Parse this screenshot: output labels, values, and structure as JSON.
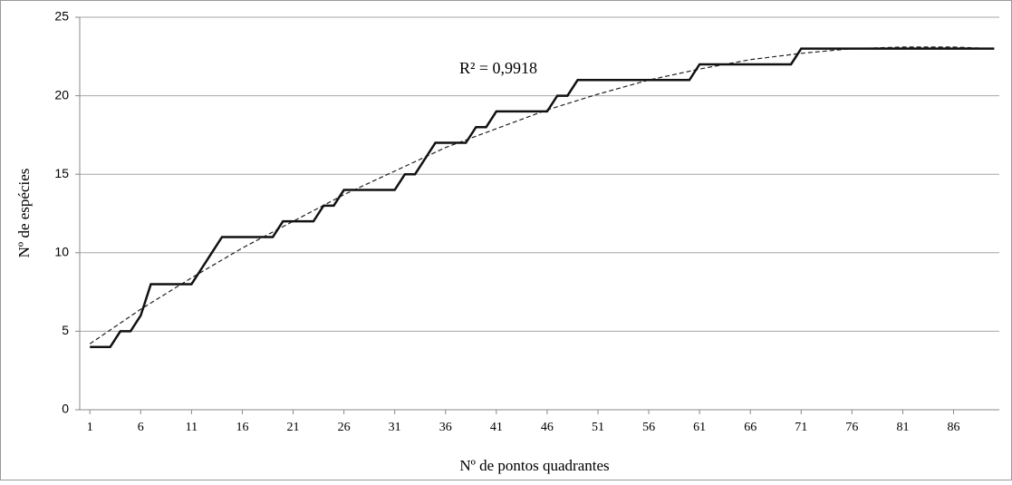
{
  "chart_data": {
    "type": "line",
    "x_label": "Nº de pontos quadrantes",
    "y_label": "Nº de espécies",
    "annotation": "R² = 0,9918",
    "x": [
      1,
      2,
      3,
      4,
      5,
      6,
      7,
      8,
      9,
      10,
      11,
      12,
      13,
      14,
      15,
      16,
      17,
      18,
      19,
      20,
      21,
      22,
      23,
      24,
      25,
      26,
      27,
      28,
      29,
      30,
      31,
      32,
      33,
      34,
      35,
      36,
      37,
      38,
      39,
      40,
      41,
      42,
      43,
      44,
      45,
      46,
      47,
      48,
      49,
      50,
      51,
      52,
      53,
      54,
      55,
      56,
      57,
      58,
      59,
      60,
      61,
      62,
      63,
      64,
      65,
      66,
      67,
      68,
      69,
      70,
      71,
      72,
      73,
      74,
      75,
      76,
      77,
      78,
      79,
      80,
      81,
      82,
      83,
      84,
      85,
      86,
      87,
      88,
      89,
      90
    ],
    "values": [
      4,
      4,
      4,
      5,
      5,
      6,
      8,
      8,
      8,
      8,
      8,
      9,
      10,
      11,
      11,
      11,
      11,
      11,
      11,
      12,
      12,
      12,
      12,
      13,
      13,
      14,
      14,
      14,
      14,
      14,
      14,
      15,
      15,
      16,
      17,
      17,
      17,
      17,
      18,
      18,
      19,
      19,
      19,
      19,
      19,
      19,
      20,
      20,
      21,
      21,
      21,
      21,
      21,
      21,
      21,
      21,
      21,
      21,
      21,
      21,
      22,
      22,
      22,
      22,
      22,
      22,
      22,
      22,
      22,
      22,
      23,
      23,
      23,
      23,
      23,
      23,
      23,
      23,
      23,
      23,
      23,
      23,
      23,
      23,
      23,
      23,
      23,
      23,
      23,
      23
    ],
    "color": "#111111",
    "trend": {
      "x": [
        1,
        6,
        11,
        16,
        21,
        26,
        31,
        36,
        41,
        46,
        51,
        56,
        61,
        66,
        71,
        76,
        81,
        86,
        90
      ],
      "values": [
        4.2,
        6.4,
        8.4,
        10.3,
        12.0,
        13.7,
        15.2,
        16.7,
        17.9,
        19.1,
        20.1,
        21.0,
        21.7,
        22.3,
        22.7,
        23.0,
        23.1,
        23.1,
        23.0
      ],
      "color": "#222222",
      "dashed": true
    },
    "xlim": [
      0,
      90.5
    ],
    "xticks": [
      1,
      6,
      11,
      16,
      21,
      26,
      31,
      36,
      41,
      46,
      51,
      56,
      61,
      66,
      71,
      76,
      81,
      86
    ],
    "ylim": [
      0,
      25
    ],
    "yticks": [
      0,
      5,
      10,
      15,
      20,
      25
    ],
    "grid": true
  }
}
